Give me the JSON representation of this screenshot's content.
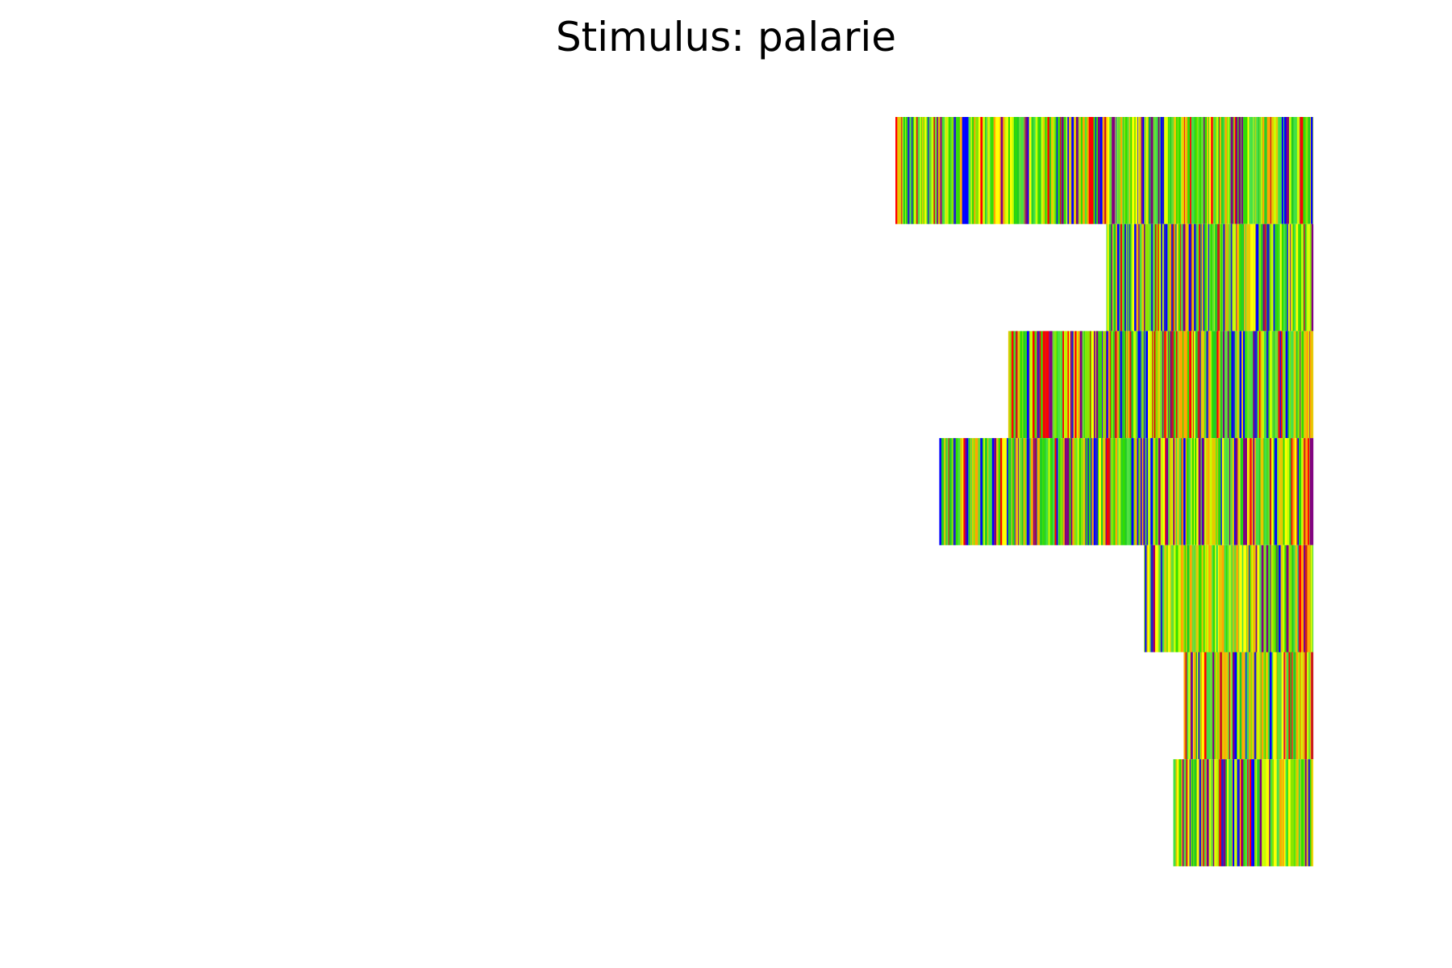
{
  "chart_data": {
    "type": "heatmap",
    "title": "Stimulus: palarie",
    "xlabel": "",
    "ylabel": "",
    "axes_visible": false,
    "grid": false,
    "xlim": [
      0,
      1
    ],
    "row_count": 7,
    "rows": [
      {
        "start": 0.0,
        "end": 1.0
      },
      {
        "start": 0.505,
        "end": 1.0
      },
      {
        "start": 0.27,
        "end": 1.0
      },
      {
        "start": 0.105,
        "end": 1.0
      },
      {
        "start": 0.595,
        "end": 1.0
      },
      {
        "start": 0.69,
        "end": 1.0
      },
      {
        "start": 0.665,
        "end": 1.0
      }
    ],
    "palette": [
      "#0000ff",
      "#2020c8",
      "#800080",
      "#cc1a1a",
      "#ff0000",
      "#ffa500",
      "#e6c800",
      "#ffff00",
      "#c8ff00",
      "#88e600",
      "#33dd00",
      "#22cc22",
      "#44e044",
      "#66dd33"
    ],
    "row_palette_weights": [
      [
        2,
        1,
        2,
        1,
        1,
        2,
        2,
        2,
        3,
        3,
        4,
        3,
        3,
        2
      ],
      [
        3,
        2,
        3,
        1,
        1,
        2,
        2,
        2,
        3,
        2,
        3,
        2,
        2,
        2
      ],
      [
        3,
        2,
        3,
        1,
        2,
        2,
        2,
        2,
        3,
        2,
        3,
        2,
        2,
        2
      ],
      [
        2,
        1,
        3,
        1,
        1,
        3,
        3,
        2,
        2,
        2,
        3,
        3,
        2,
        2
      ],
      [
        1,
        1,
        2,
        1,
        1,
        3,
        3,
        3,
        3,
        2,
        3,
        2,
        2,
        2
      ],
      [
        1,
        1,
        2,
        1,
        2,
        3,
        3,
        3,
        2,
        2,
        2,
        2,
        2,
        2
      ],
      [
        2,
        1,
        2,
        1,
        1,
        2,
        2,
        3,
        3,
        2,
        3,
        3,
        3,
        2
      ]
    ]
  }
}
